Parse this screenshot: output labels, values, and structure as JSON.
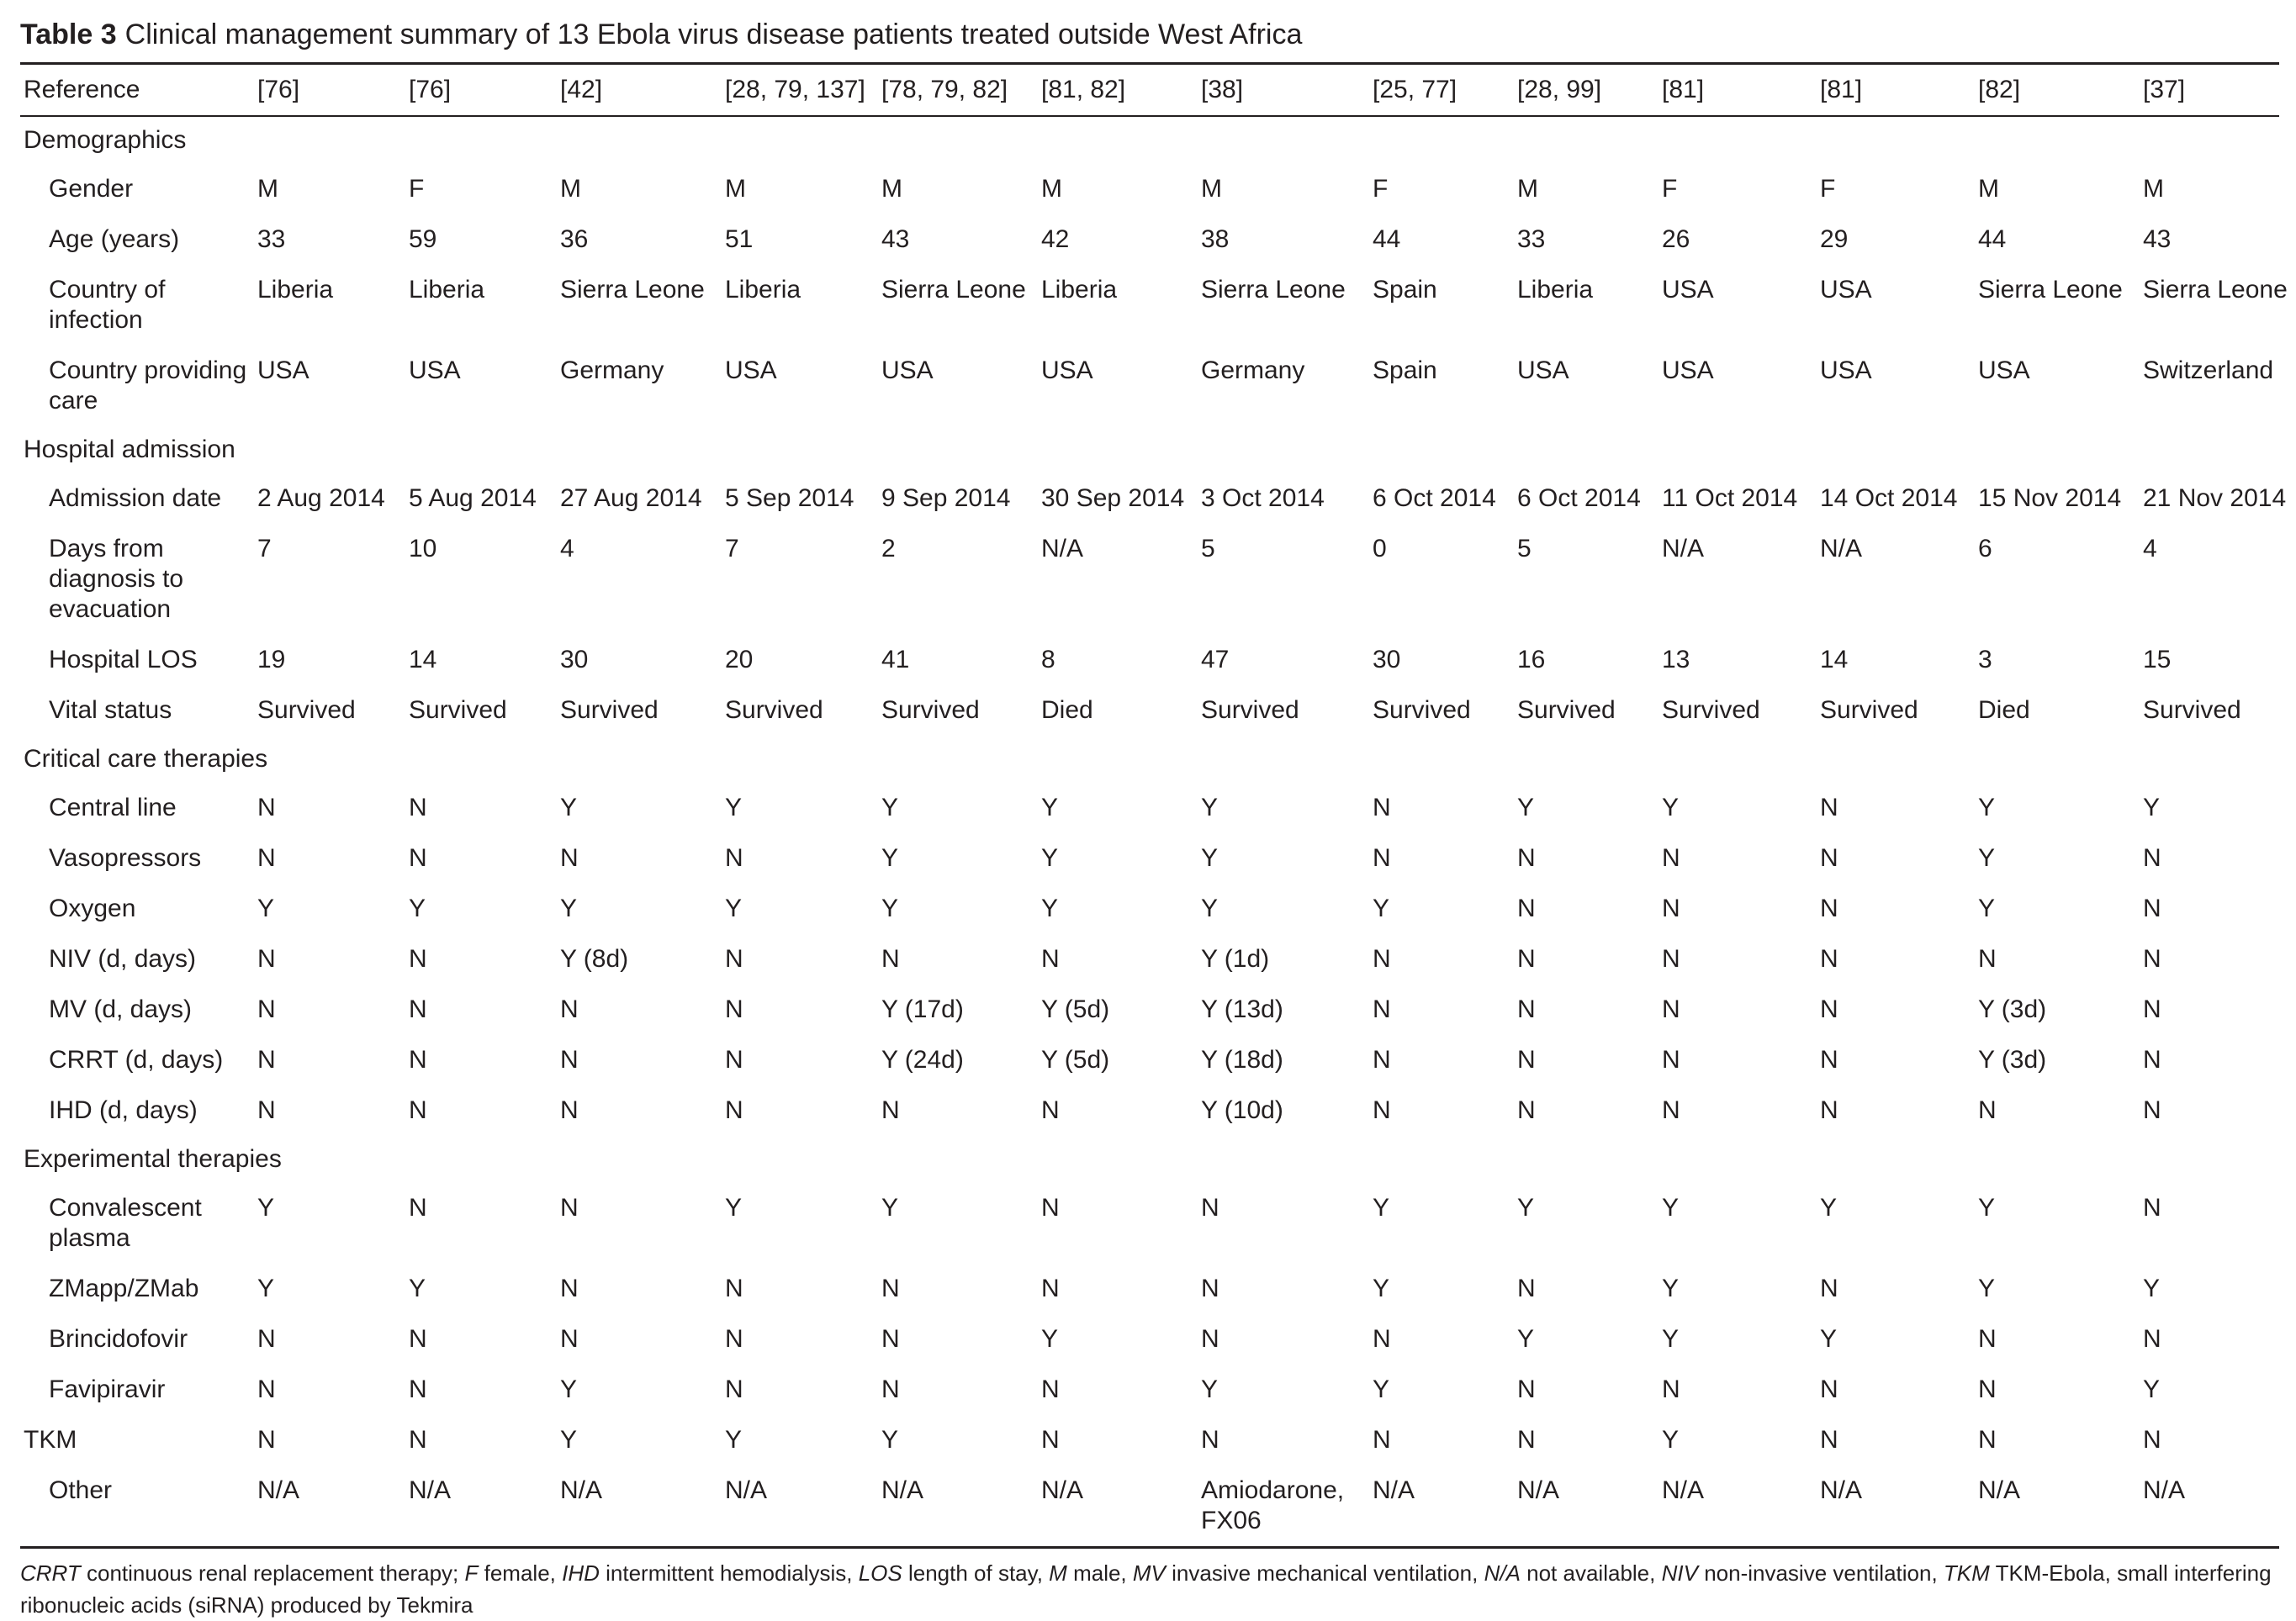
{
  "caption": {
    "label": "Table 3",
    "text": "Clinical management summary of 13 Ebola virus disease patients treated outside West Africa"
  },
  "header": {
    "label": "Reference",
    "values": [
      "[76]",
      "[76]",
      "[42]",
      "[28, 79, 137]",
      "[78, 79, 82]",
      "[81, 82]",
      "[38]",
      "[25, 77]",
      "[28, 99]",
      "[81]",
      "[81]",
      "[82]",
      "[37]"
    ]
  },
  "rows": [
    {
      "type": "section",
      "label": "Demographics"
    },
    {
      "type": "data",
      "label": "Gender",
      "values": [
        "M",
        "F",
        "M",
        "M",
        "M",
        "M",
        "M",
        "F",
        "M",
        "F",
        "F",
        "M",
        "M"
      ]
    },
    {
      "type": "data",
      "label": "Age (years)",
      "values": [
        "33",
        "59",
        "36",
        "51",
        "43",
        "42",
        "38",
        "44",
        "33",
        "26",
        "29",
        "44",
        "43"
      ]
    },
    {
      "type": "data",
      "label": "Country of infection",
      "values": [
        "Liberia",
        "Liberia",
        "Sierra Leone",
        "Liberia",
        "Sierra Leone",
        "Liberia",
        "Sierra Leone",
        "Spain",
        "Liberia",
        "USA",
        "USA",
        "Sierra Leone",
        "Sierra Leone"
      ]
    },
    {
      "type": "data",
      "label": "Country providing care",
      "values": [
        "USA",
        "USA",
        "Germany",
        "USA",
        "USA",
        "USA",
        "Germany",
        "Spain",
        "USA",
        "USA",
        "USA",
        "USA",
        "Switzerland"
      ]
    },
    {
      "type": "section",
      "label": "Hospital admission"
    },
    {
      "type": "data",
      "label": "Admission date",
      "values": [
        "2 Aug 2014",
        "5 Aug 2014",
        "27 Aug 2014",
        "5 Sep 2014",
        "9 Sep 2014",
        "30 Sep 2014",
        "3 Oct 2014",
        "6 Oct 2014",
        "6 Oct 2014",
        "11 Oct 2014",
        "14 Oct 2014",
        "15 Nov 2014",
        "21 Nov 2014"
      ]
    },
    {
      "type": "data",
      "label": "Days from diagnosis to evacuation",
      "values": [
        "7",
        "10",
        "4",
        "7",
        "2",
        "N/A",
        "5",
        "0",
        "5",
        "N/A",
        "N/A",
        "6",
        "4"
      ]
    },
    {
      "type": "data",
      "label": "Hospital LOS",
      "values": [
        "19",
        "14",
        "30",
        "20",
        "41",
        "8",
        "47",
        "30",
        "16",
        "13",
        "14",
        "3",
        "15"
      ]
    },
    {
      "type": "data",
      "label": "Vital status",
      "values": [
        "Survived",
        "Survived",
        "Survived",
        "Survived",
        "Survived",
        "Died",
        "Survived",
        "Survived",
        "Survived",
        "Survived",
        "Survived",
        "Died",
        "Survived"
      ]
    },
    {
      "type": "section",
      "label": "Critical care therapies"
    },
    {
      "type": "data",
      "label": "Central line",
      "values": [
        "N",
        "N",
        "Y",
        "Y",
        "Y",
        "Y",
        "Y",
        "N",
        "Y",
        "Y",
        "N",
        "Y",
        "Y"
      ]
    },
    {
      "type": "data",
      "label": "Vasopressors",
      "values": [
        "N",
        "N",
        "N",
        "N",
        "Y",
        "Y",
        "Y",
        "N",
        "N",
        "N",
        "N",
        "Y",
        "N"
      ]
    },
    {
      "type": "data",
      "label": "Oxygen",
      "values": [
        "Y",
        "Y",
        "Y",
        "Y",
        "Y",
        "Y",
        "Y",
        "Y",
        "N",
        "N",
        "N",
        "Y",
        "N"
      ]
    },
    {
      "type": "data",
      "label": "NIV (d, days)",
      "values": [
        "N",
        "N",
        "Y (8d)",
        "N",
        "N",
        "N",
        "Y (1d)",
        "N",
        "N",
        "N",
        "N",
        "N",
        "N"
      ]
    },
    {
      "type": "data",
      "label": "MV (d, days)",
      "values": [
        "N",
        "N",
        "N",
        "N",
        "Y (17d)",
        "Y (5d)",
        "Y (13d)",
        "N",
        "N",
        "N",
        "N",
        "Y (3d)",
        "N"
      ]
    },
    {
      "type": "data",
      "label": "CRRT (d, days)",
      "values": [
        "N",
        "N",
        "N",
        "N",
        "Y (24d)",
        "Y (5d)",
        "Y (18d)",
        "N",
        "N",
        "N",
        "N",
        "Y (3d)",
        "N"
      ]
    },
    {
      "type": "data",
      "label": "IHD (d, days)",
      "values": [
        "N",
        "N",
        "N",
        "N",
        "N",
        "N",
        "Y (10d)",
        "N",
        "N",
        "N",
        "N",
        "N",
        "N"
      ]
    },
    {
      "type": "section",
      "label": "Experimental therapies"
    },
    {
      "type": "data",
      "label": "Convalescent plasma",
      "values": [
        "Y",
        "N",
        "N",
        "Y",
        "Y",
        "N",
        "N",
        "Y",
        "Y",
        "Y",
        "Y",
        "Y",
        "N"
      ]
    },
    {
      "type": "data",
      "label": "ZMapp/ZMab",
      "values": [
        "Y",
        "Y",
        "N",
        "N",
        "N",
        "N",
        "N",
        "Y",
        "N",
        "Y",
        "N",
        "Y",
        "Y"
      ]
    },
    {
      "type": "data",
      "label": "Brincidofovir",
      "values": [
        "N",
        "N",
        "N",
        "N",
        "N",
        "Y",
        "N",
        "N",
        "Y",
        "Y",
        "Y",
        "N",
        "N"
      ]
    },
    {
      "type": "data",
      "label": "Favipiravir",
      "values": [
        "N",
        "N",
        "Y",
        "N",
        "N",
        "N",
        "Y",
        "Y",
        "N",
        "N",
        "N",
        "N",
        "Y"
      ]
    },
    {
      "type": "top",
      "label": "TKM",
      "values": [
        "N",
        "N",
        "Y",
        "Y",
        "Y",
        "N",
        "N",
        "N",
        "N",
        "Y",
        "N",
        "N",
        "N"
      ]
    },
    {
      "type": "data",
      "label": "Other",
      "values": [
        "N/A",
        "N/A",
        "N/A",
        "N/A",
        "N/A",
        "N/A",
        "Amiodarone, FX06",
        "N/A",
        "N/A",
        "N/A",
        "N/A",
        "N/A",
        "N/A"
      ]
    }
  ],
  "footnote": [
    {
      "abbr": "CRRT",
      "def": "continuous renal replacement therapy;"
    },
    {
      "abbr": "F",
      "def": "female,"
    },
    {
      "abbr": "IHD",
      "def": "intermittent hemodialysis,"
    },
    {
      "abbr": "LOS",
      "def": "length of stay,"
    },
    {
      "abbr": "M",
      "def": "male,"
    },
    {
      "abbr": "MV",
      "def": "invasive mechanical ventilation,"
    },
    {
      "abbr": "N/A",
      "def": "not available,"
    },
    {
      "abbr": "NIV",
      "def": "non-invasive ventilation,"
    },
    {
      "abbr": "TKM",
      "def": "TKM-Ebola, small interfering ribonucleic acids (siRNA) produced by Tekmira"
    }
  ]
}
